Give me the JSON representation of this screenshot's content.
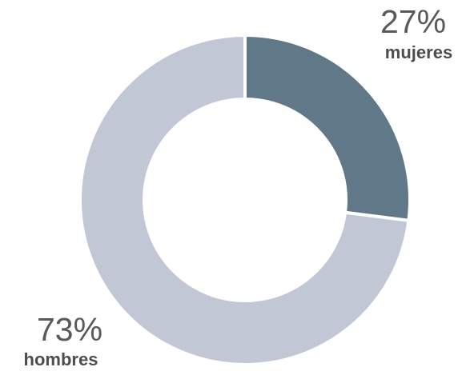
{
  "chart_data": {
    "type": "pie",
    "variant": "donut",
    "slices": [
      {
        "label": "mujeres",
        "value": 27,
        "value_text": "27%",
        "color": "#617888"
      },
      {
        "label": "hombres",
        "value": 73,
        "value_text": "73%",
        "color": "#c2c7d6"
      }
    ],
    "start_angle_deg": 0,
    "direction": "clockwise",
    "slice_separator_color": "#ffffff"
  }
}
